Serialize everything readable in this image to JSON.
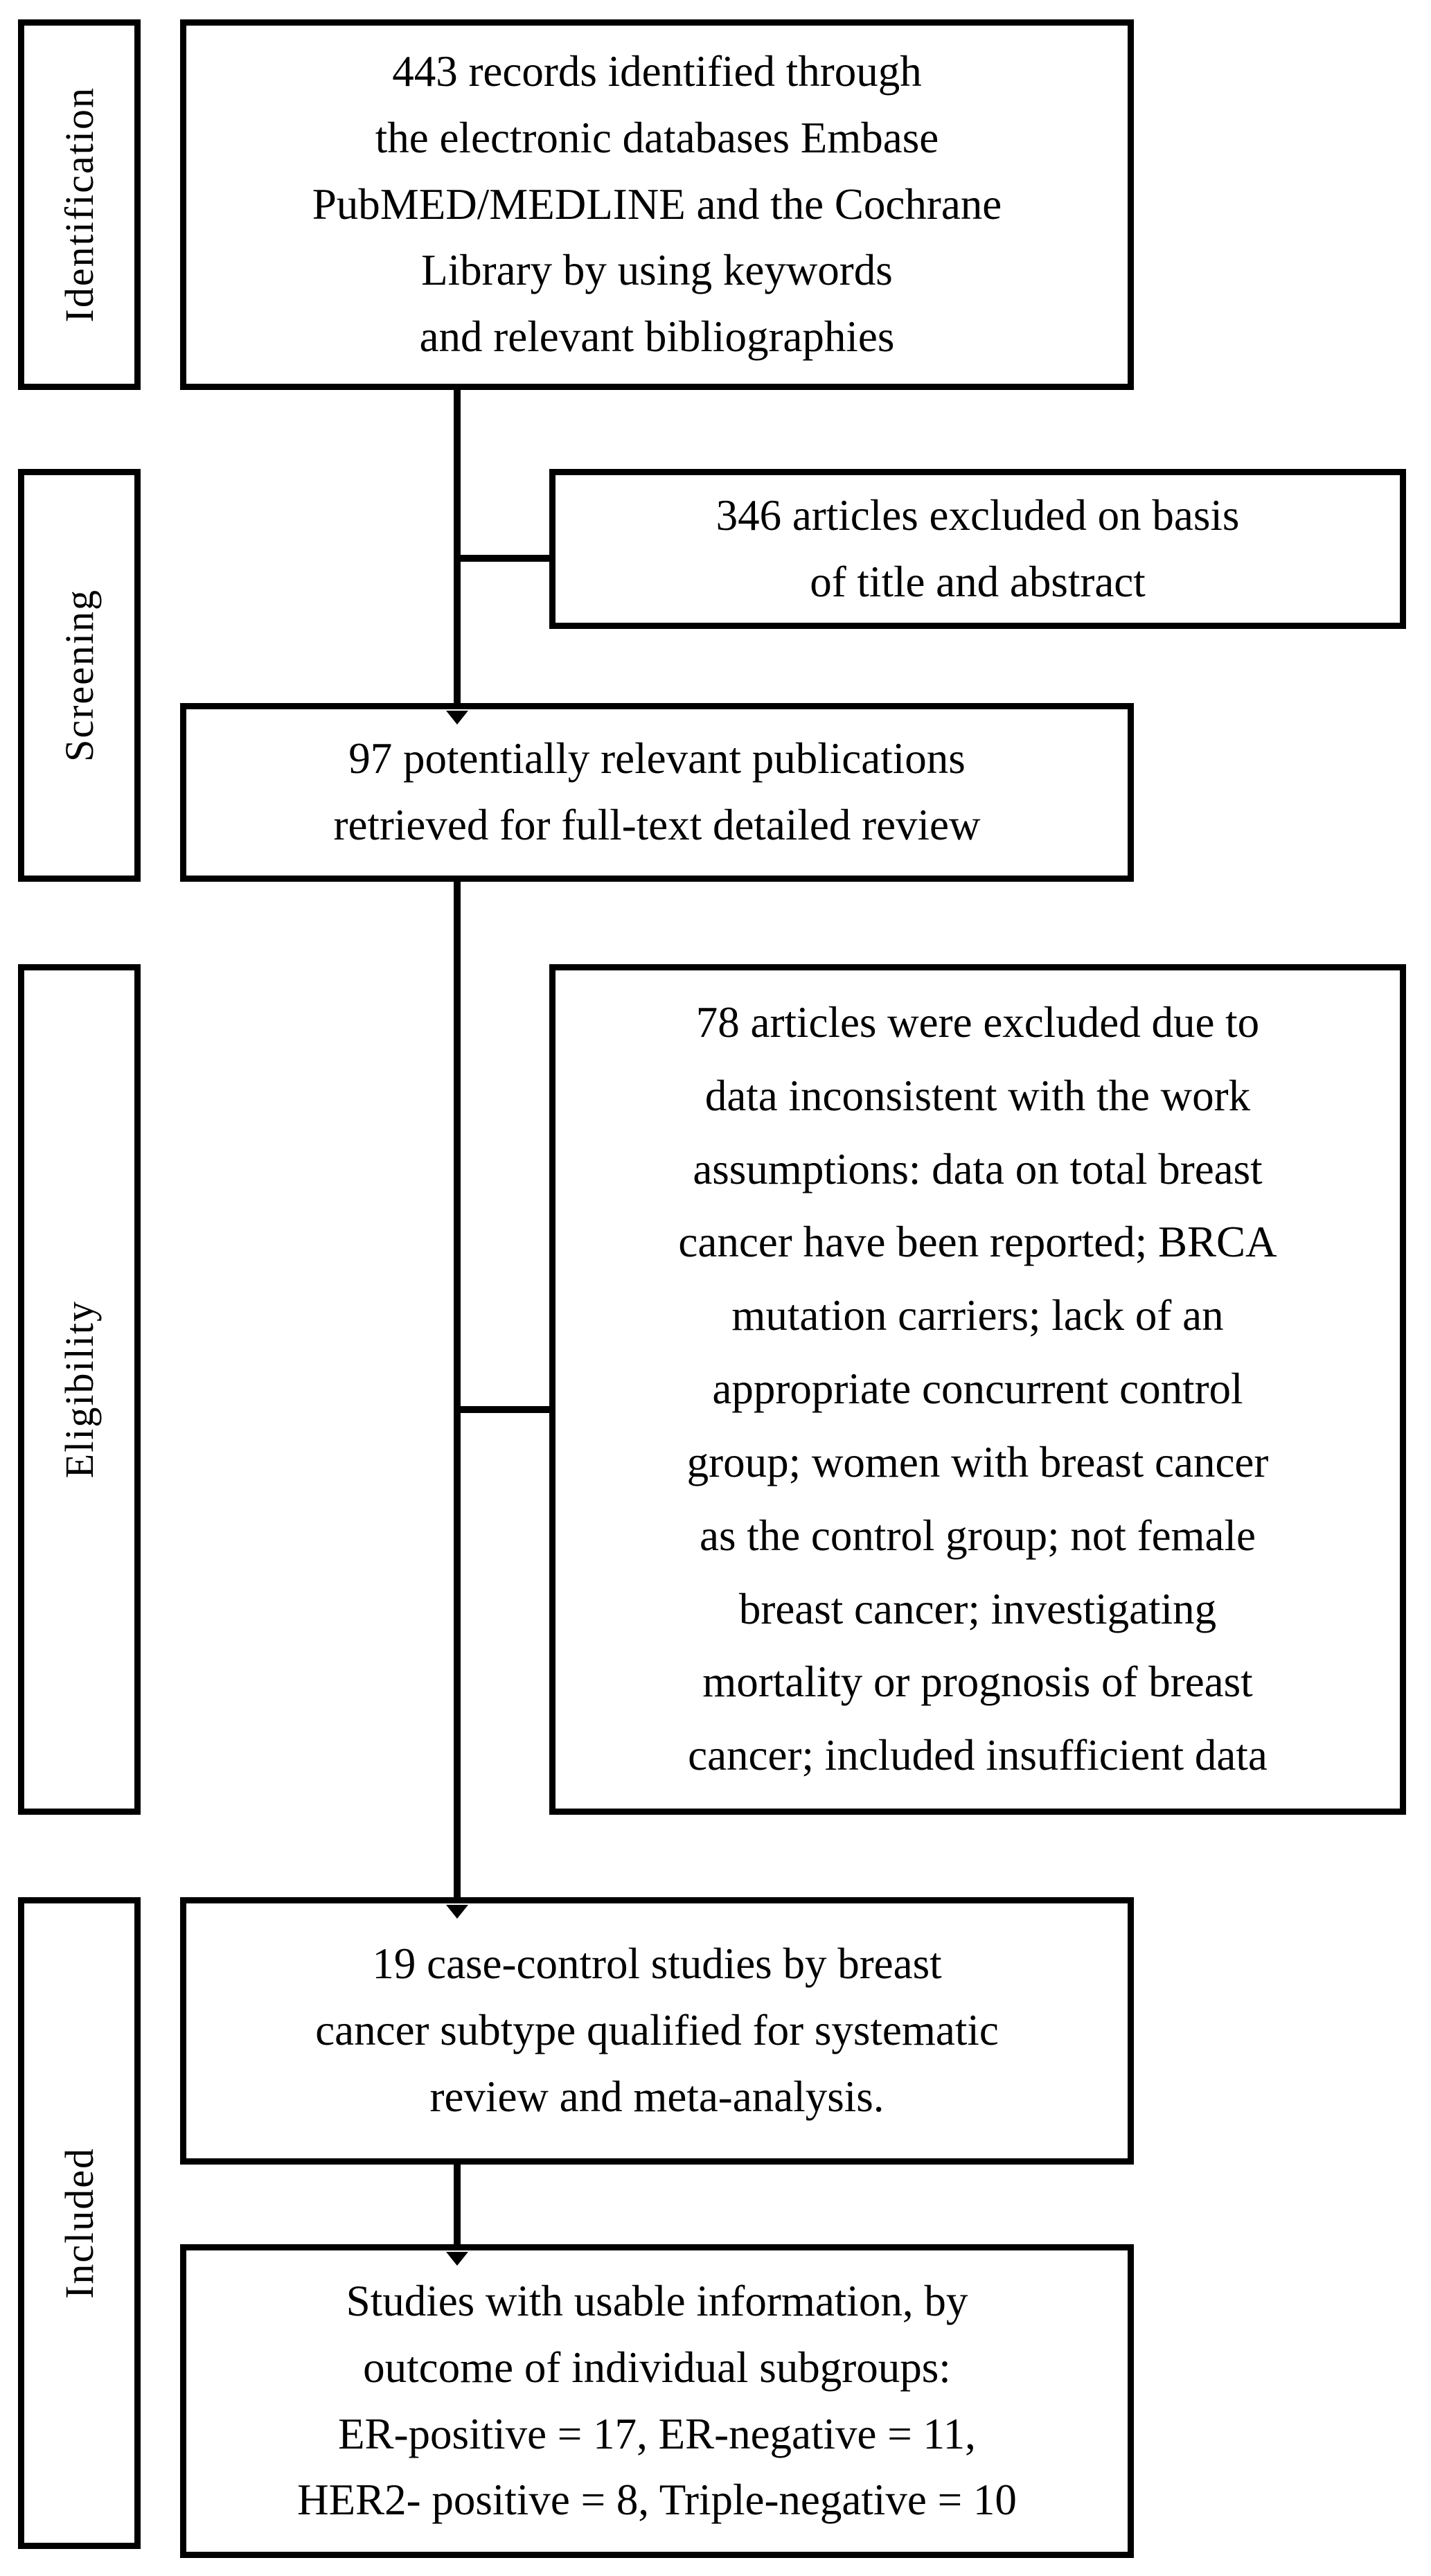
{
  "figure": {
    "kind": "study-selection-flow-diagram",
    "colors": {
      "line": "#000000",
      "text": "#000000",
      "background": "#ffffff"
    },
    "stages": [
      {
        "label": "Identification"
      },
      {
        "label": "Screening"
      },
      {
        "label": "Eligibility"
      },
      {
        "label": "Included"
      }
    ],
    "nodes": {
      "records_identified": "443 records identified through\nthe electronic databases Embase\nPubMED/MEDLINE  and the Cochrane\nLibrary by using keywords\nand relevant bibliographies",
      "excluded_title_abstract": "346 articles excluded on basis\nof title and abstract",
      "fulltext_review": "97 potentially relevant publications\nretrieved for full-text detailed review",
      "excluded_fulltext": "78 articles were excluded due to\ndata inconsistent with the work\nassumptions: data on total breast\ncancer have been reported; BRCA\nmutation carriers; lack of an\nappropriate concurrent control\ngroup; women with breast cancer\nas the control group; not female\nbreast cancer; investigating\nmortality or prognosis of breast\ncancer; included insufficient data",
      "qualified_studies": "19 case-control studies by breast\ncancer subtype qualified for systematic\nreview and meta-analysis.",
      "usable_studies": "Studies with usable information, by\noutcome of  individual subgroups:\nER-positive = 17, ER-negative = 11,\nHER2- positive = 8, Triple-negative = 10"
    },
    "counts": {
      "records_identified": 443,
      "excluded_title_abstract": 346,
      "fulltext_reviewed": 97,
      "excluded_fulltext": 78,
      "qualified_studies": 19,
      "er_positive": 17,
      "er_negative": 11,
      "her2_positive": 8,
      "triple_negative": 10
    }
  }
}
